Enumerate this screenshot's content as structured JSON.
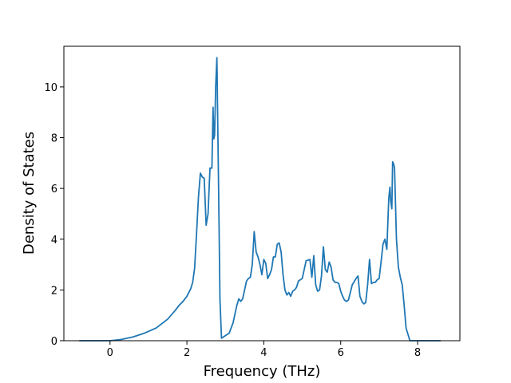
{
  "chart_data": {
    "type": "line",
    "title": "",
    "xlabel": "Frequency (THz)",
    "ylabel": "Density of States",
    "xlim": [
      -1.2,
      9.1
    ],
    "ylim": [
      0,
      11.6
    ],
    "xticks": [
      0,
      2,
      4,
      6,
      8
    ],
    "yticks": [
      0,
      2,
      4,
      6,
      8,
      10
    ],
    "grid": false,
    "legend": "none",
    "series": [
      {
        "color": "#1f77b4",
        "x": [
          -0.8,
          0.0,
          0.3,
          0.6,
          0.9,
          1.2,
          1.5,
          1.7,
          1.8,
          1.9,
          2.0,
          2.1,
          2.15,
          2.2,
          2.25,
          2.3,
          2.35,
          2.4,
          2.45,
          2.5,
          2.55,
          2.6,
          2.65,
          2.68,
          2.7,
          2.72,
          2.75,
          2.78,
          2.82,
          2.86,
          2.9,
          3.0,
          3.1,
          3.2,
          3.3,
          3.35,
          3.4,
          3.45,
          3.5,
          3.55,
          3.6,
          3.65,
          3.7,
          3.75,
          3.8,
          3.85,
          3.9,
          3.95,
          4.0,
          4.05,
          4.1,
          4.15,
          4.2,
          4.25,
          4.3,
          4.35,
          4.4,
          4.45,
          4.5,
          4.55,
          4.6,
          4.65,
          4.7,
          4.75,
          4.8,
          4.85,
          4.9,
          5.0,
          5.1,
          5.2,
          5.25,
          5.3,
          5.35,
          5.4,
          5.45,
          5.5,
          5.55,
          5.6,
          5.65,
          5.7,
          5.75,
          5.8,
          5.85,
          5.9,
          5.95,
          6.0,
          6.05,
          6.1,
          6.15,
          6.2,
          6.3,
          6.4,
          6.45,
          6.5,
          6.55,
          6.6,
          6.65,
          6.7,
          6.75,
          6.8,
          6.85,
          6.9,
          6.95,
          7.0,
          7.05,
          7.1,
          7.15,
          7.2,
          7.25,
          7.28,
          7.3,
          7.33,
          7.35,
          7.38,
          7.4,
          7.45,
          7.5,
          7.55,
          7.6,
          7.65,
          7.7,
          7.8,
          7.9,
          8.0,
          8.6
        ],
        "y": [
          0.0,
          0.0,
          0.05,
          0.15,
          0.3,
          0.5,
          0.85,
          1.2,
          1.4,
          1.55,
          1.75,
          2.05,
          2.3,
          2.85,
          4.2,
          5.65,
          6.6,
          6.45,
          6.4,
          4.55,
          5.0,
          6.8,
          6.8,
          9.2,
          7.95,
          8.1,
          10.1,
          11.15,
          6.5,
          1.6,
          0.1,
          0.2,
          0.3,
          0.7,
          1.4,
          1.65,
          1.55,
          1.65,
          2.0,
          2.35,
          2.45,
          2.5,
          3.0,
          4.3,
          3.5,
          3.3,
          3.0,
          2.6,
          3.2,
          3.05,
          2.45,
          2.6,
          2.8,
          3.3,
          3.3,
          3.8,
          3.85,
          3.5,
          2.6,
          2.0,
          1.8,
          1.9,
          1.75,
          1.95,
          2.0,
          2.1,
          2.35,
          2.45,
          3.15,
          3.2,
          2.5,
          3.35,
          2.2,
          1.95,
          2.0,
          2.55,
          3.7,
          2.8,
          2.7,
          3.1,
          2.9,
          2.4,
          2.3,
          2.3,
          2.25,
          1.95,
          1.75,
          1.6,
          1.55,
          1.6,
          2.2,
          2.45,
          2.55,
          1.75,
          1.55,
          1.45,
          1.5,
          2.2,
          3.2,
          2.25,
          2.3,
          2.3,
          2.4,
          2.45,
          3.1,
          3.8,
          4.0,
          3.6,
          5.6,
          6.05,
          5.5,
          5.2,
          7.05,
          6.95,
          6.8,
          4.0,
          2.9,
          2.5,
          2.2,
          1.4,
          0.5,
          0.0,
          0.0,
          0.0,
          0.0
        ]
      }
    ]
  }
}
